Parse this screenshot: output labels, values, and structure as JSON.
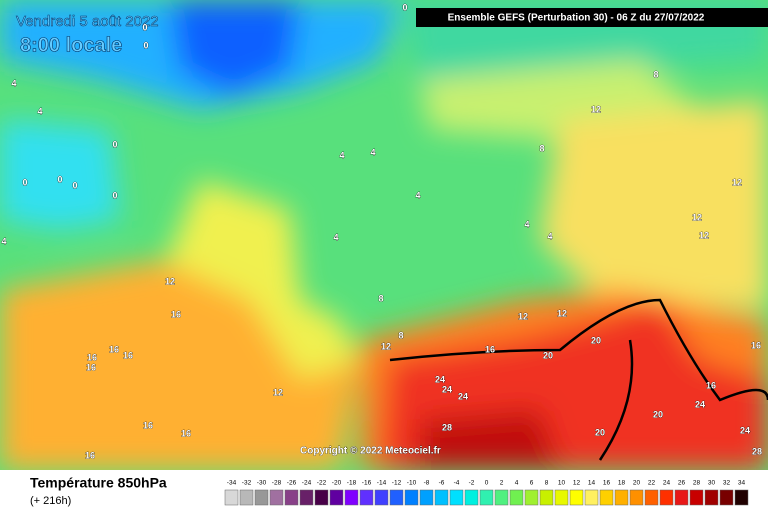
{
  "header": {
    "date": "Vendredi 5 août 2022",
    "time": "8:00 locale",
    "model": "Ensemble GEFS  (Perturbation 30)  -  06 Z du 27/07/2022"
  },
  "copyright": "Copyright © 2022 Meteociel.fr",
  "footer": {
    "title": "Température 850hPa",
    "subtitle": "(+ 216h)"
  },
  "map": {
    "contour_labels": [
      0,
      0,
      0,
      4,
      4,
      0,
      0,
      0,
      0,
      0,
      4,
      4,
      4,
      4,
      4,
      4,
      4,
      8,
      12,
      8,
      12,
      12,
      12,
      12,
      16,
      8,
      8,
      12,
      12,
      12,
      16,
      20,
      20,
      16,
      16,
      16,
      16,
      16,
      24,
      24,
      24,
      12,
      16,
      24,
      20,
      16,
      16,
      28,
      20,
      24,
      28,
      16
    ]
  },
  "scale": {
    "values": [
      -34,
      -32,
      -30,
      -28,
      -26,
      -24,
      -22,
      -20,
      -18,
      -16,
      -14,
      -12,
      -10,
      -8,
      -6,
      -4,
      -2,
      0,
      2,
      4,
      6,
      8,
      10,
      12,
      14,
      16,
      18,
      20,
      22,
      24,
      26,
      28,
      30,
      32,
      34
    ],
    "colors": [
      "#d8d8d8",
      "#b8b8b8",
      "#989898",
      "#a070a0",
      "#884088",
      "#682068",
      "#480048",
      "#6000a0",
      "#8000ff",
      "#6030ff",
      "#4040ff",
      "#2060ff",
      "#0080ff",
      "#00a0ff",
      "#00c0ff",
      "#00e0ff",
      "#00f0e0",
      "#30f0b0",
      "#50f080",
      "#70f050",
      "#a0f030",
      "#c8f000",
      "#e8f800",
      "#ffff00",
      "#fff060",
      "#ffd000",
      "#ffb000",
      "#ff9000",
      "#ff6000",
      "#ff3000",
      "#e81818",
      "#c80000",
      "#a00000",
      "#780000",
      "#200000"
    ]
  }
}
